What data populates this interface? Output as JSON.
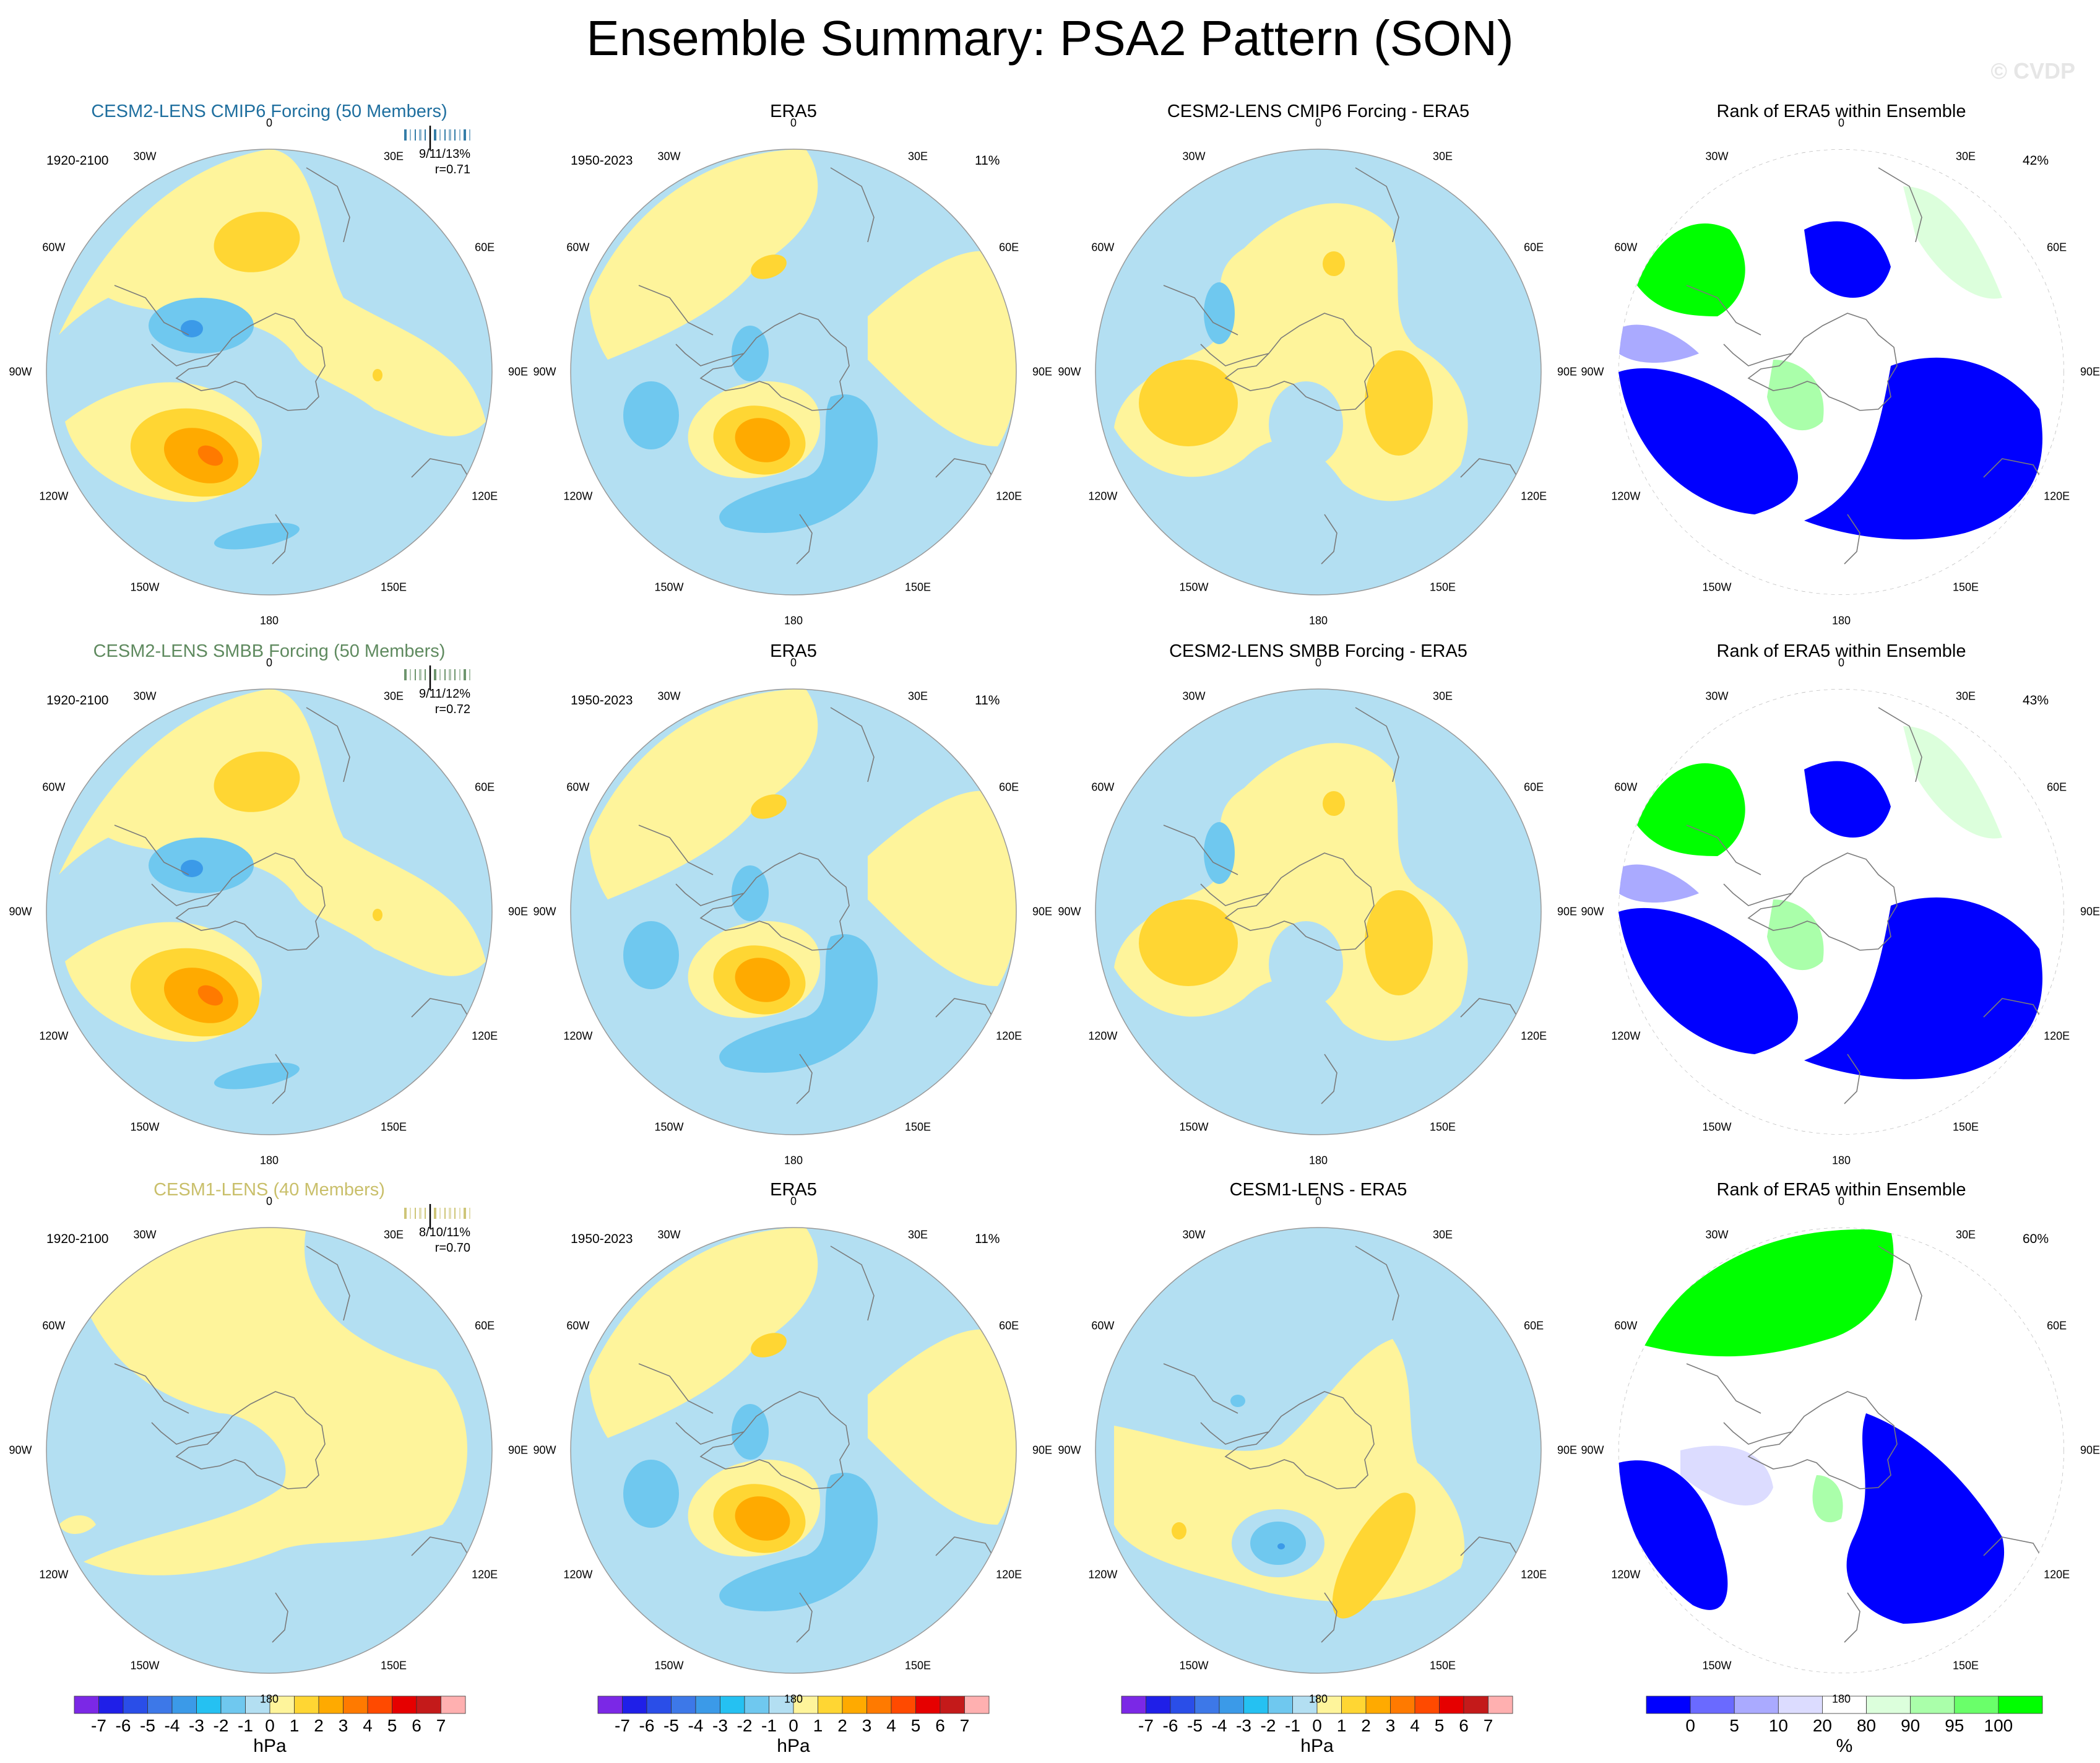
{
  "title": "Ensemble Summary: PSA2 Pattern (SON)",
  "watermark": "© CVDP",
  "colors": {
    "model1_title": "#1f6f9f",
    "model2_title": "#5f8a5f",
    "model3_title": "#c9bf6a",
    "land_line": "#808080"
  },
  "longitude_labels": [
    "0",
    "30E",
    "60E",
    "90E",
    "120E",
    "150E",
    "180",
    "150W",
    "120W",
    "90W",
    "60W",
    "30W"
  ],
  "rows": [
    {
      "model_panel": {
        "title": "CESM2-LENS CMIP6 Forcing (50 Members)",
        "period": "1920-2100",
        "stats": "9/11/13%",
        "r": "r=0.71",
        "bar_color": "#1f6f9f"
      },
      "obs_panel": {
        "title": "ERA5",
        "period": "1950-2023",
        "pct": "11%"
      },
      "diff_panel": {
        "title": "CESM2-LENS CMIP6 Forcing - ERA5"
      },
      "rank_panel": {
        "title": "Rank of ERA5 within Ensemble",
        "pct": "42%"
      }
    },
    {
      "model_panel": {
        "title": "CESM2-LENS SMBB Forcing (50 Members)",
        "period": "1920-2100",
        "stats": "9/11/12%",
        "r": "r=0.72",
        "bar_color": "#5f8a5f"
      },
      "obs_panel": {
        "title": "ERA5",
        "period": "1950-2023",
        "pct": "11%"
      },
      "diff_panel": {
        "title": "CESM2-LENS SMBB Forcing - ERA5"
      },
      "rank_panel": {
        "title": "Rank of ERA5 within Ensemble",
        "pct": "43%"
      }
    },
    {
      "model_panel": {
        "title": "CESM1-LENS (40 Members)",
        "period": "1920-2100",
        "stats": "8/10/11%",
        "r": "r=0.70",
        "bar_color": "#c9bf6a"
      },
      "obs_panel": {
        "title": "ERA5",
        "period": "1950-2023",
        "pct": "11%"
      },
      "diff_panel": {
        "title": "CESM1-LENS - ERA5"
      },
      "rank_panel": {
        "title": "Rank of ERA5 within Ensemble",
        "pct": "60%"
      }
    }
  ],
  "chart_data": {
    "type": "heatmap",
    "description": "Polar stereographic maps of sea level pressure pattern",
    "colorbars": [
      {
        "unit": "hPa",
        "labels": [
          "-7",
          "-6",
          "-5",
          "-4",
          "-3",
          "-2",
          "-1",
          "0",
          "1",
          "2",
          "3",
          "4",
          "5",
          "6",
          "7"
        ],
        "colors": [
          "#7b28e6",
          "#1f1fe8",
          "#2a4ee8",
          "#3d78e8",
          "#3b9ae8",
          "#25c1f2",
          "#6fc8ef",
          "#b3dff2",
          "#fef49b",
          "#ffd633",
          "#ffaa00",
          "#ff7a00",
          "#ff4a00",
          "#e60000",
          "#c41a1a",
          "#ffb0b0"
        ]
      },
      {
        "unit": "%",
        "labels": [
          "0",
          "5",
          "10",
          "20",
          "80",
          "90",
          "95",
          "100"
        ],
        "colors": [
          "#0000ff",
          "#6a6aff",
          "#aaaaff",
          "#dcdcff",
          "#ffffff",
          "#dcffdc",
          "#aaffaa",
          "#6aff6a",
          "#00ff00"
        ]
      }
    ],
    "rank_levels": [
      0,
      5,
      10,
      20,
      80,
      90,
      95,
      100
    ]
  }
}
